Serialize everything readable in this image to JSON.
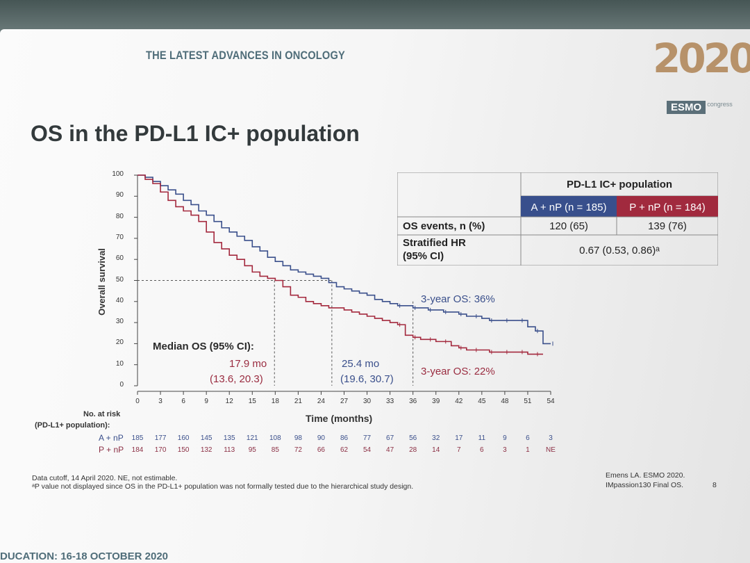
{
  "header": {
    "topline": "THE LATEST ADVANCES IN ONCOLOGY",
    "year": "2020",
    "org": "ESMO",
    "org_suffix": "congress"
  },
  "slide_title": "OS in the PD-L1 IC+ population",
  "chart_data": {
    "type": "line",
    "xlabel": "Time (months)",
    "ylabel": "Overall survival",
    "xlim": [
      0,
      54
    ],
    "ylim": [
      0,
      100
    ],
    "x_ticks": [
      "0",
      "3",
      "6",
      "9",
      "12",
      "15",
      "18",
      "21",
      "24",
      "27",
      "30",
      "33",
      "36",
      "39",
      "42",
      "45",
      "48",
      "51",
      "54"
    ],
    "y_ticks": [
      "0",
      "10",
      "20",
      "30",
      "40",
      "50",
      "60",
      "70",
      "80",
      "90",
      "100"
    ],
    "series": [
      {
        "color": "#3a4f8b",
        "x": [
          0,
          1,
          2,
          3,
          4,
          5,
          6,
          7,
          8,
          9,
          10,
          11,
          12,
          13,
          14,
          15,
          16,
          17,
          18,
          19,
          20,
          21,
          22,
          23,
          24,
          25,
          26,
          27,
          28,
          29,
          30,
          31,
          32,
          33,
          34,
          35,
          36,
          37,
          38,
          39,
          40,
          41,
          42,
          43,
          44,
          45,
          46,
          47,
          48,
          49,
          50,
          51,
          52,
          53,
          54
        ],
        "y": [
          100,
          99,
          97,
          95,
          93,
          91,
          88,
          86,
          83,
          81,
          78,
          75,
          73,
          71,
          69,
          66,
          64,
          61,
          59,
          57,
          55,
          54,
          53,
          52,
          51,
          49,
          47,
          46,
          45,
          44,
          43,
          41,
          40,
          39,
          38,
          38,
          37,
          37,
          36,
          36,
          35,
          35,
          34,
          33,
          33,
          32,
          31,
          31,
          31,
          31,
          31,
          28,
          26,
          20,
          20
        ]
      },
      {
        "color": "#a3283d",
        "x": [
          0,
          1,
          2,
          3,
          4,
          5,
          6,
          7,
          8,
          9,
          10,
          11,
          12,
          13,
          14,
          15,
          16,
          17,
          18,
          19,
          20,
          21,
          22,
          23,
          24,
          25,
          26,
          27,
          28,
          29,
          30,
          31,
          32,
          33,
          34,
          35,
          36,
          37,
          38,
          39,
          40,
          41,
          42,
          43,
          44,
          45,
          46,
          47,
          48,
          49,
          50,
          51,
          52,
          53
        ],
        "y": [
          100,
          98,
          96,
          92,
          88,
          85,
          83,
          81,
          78,
          73,
          68,
          65,
          62,
          60,
          57,
          54,
          52,
          51,
          50,
          47,
          43,
          42,
          40,
          39,
          38,
          37,
          37,
          36,
          35,
          34,
          33,
          32,
          31,
          30,
          29,
          24,
          23,
          22,
          22,
          21,
          21,
          19,
          18,
          17,
          17,
          17,
          16,
          16,
          16,
          16,
          16,
          15,
          15,
          15
        ]
      }
    ],
    "median_guides": [
      {
        "x": 17.9,
        "y": 50
      },
      {
        "x": 25.4,
        "y": 50
      },
      {
        "x": 36,
        "y": 0
      }
    ],
    "annotations": {
      "os3_a": "3-year OS: 36%",
      "os3_p": "3-year OS: 22%",
      "median_label": "Median OS (95% CI):",
      "median_p_value": "17.9 mo",
      "median_p_ci": "(13.6, 20.3)",
      "median_a_value": "25.4 mo",
      "median_a_ci": "(19.6, 30.7)"
    },
    "table": {
      "header": "PD-L1 IC+ population",
      "col_a": "A + nP (n = 185)",
      "col_p": "P + nP (n = 184)",
      "row1_label": "OS events, n (%)",
      "row1_a": "120 (65)",
      "row1_p": "139 (76)",
      "row2_label": "Stratified HR",
      "row2_label2": "(95% CI)",
      "row2_value": "0.67 (0.53, 0.86)ᵃ"
    },
    "risk_table": {
      "title": "No. at risk",
      "subtitle": "(PD-L1+ population):",
      "rows": [
        {
          "label": "A + nP",
          "values": [
            "185",
            "177",
            "160",
            "145",
            "135",
            "121",
            "108",
            "98",
            "90",
            "86",
            "77",
            "67",
            "56",
            "32",
            "17",
            "11",
            "9",
            "6",
            "3"
          ]
        },
        {
          "label": "P + nP",
          "values": [
            "184",
            "170",
            "150",
            "132",
            "113",
            "95",
            "85",
            "72",
            "66",
            "62",
            "54",
            "47",
            "28",
            "14",
            "7",
            "6",
            "3",
            "1",
            "NE"
          ]
        }
      ]
    }
  },
  "footer": {
    "line1": "Data cutoff, 14 April 2020. NE, not estimable.",
    "line2": "ᵃP value not displayed since OS in the PD-L1+ population was not formally tested due to the hierarchical study design.",
    "ref1": "Emens LA. ESMO 2020.",
    "ref2": "IMpassion130 Final OS.",
    "page": "8",
    "bottom": "DUCATION: 16-18 OCTOBER 2020"
  }
}
